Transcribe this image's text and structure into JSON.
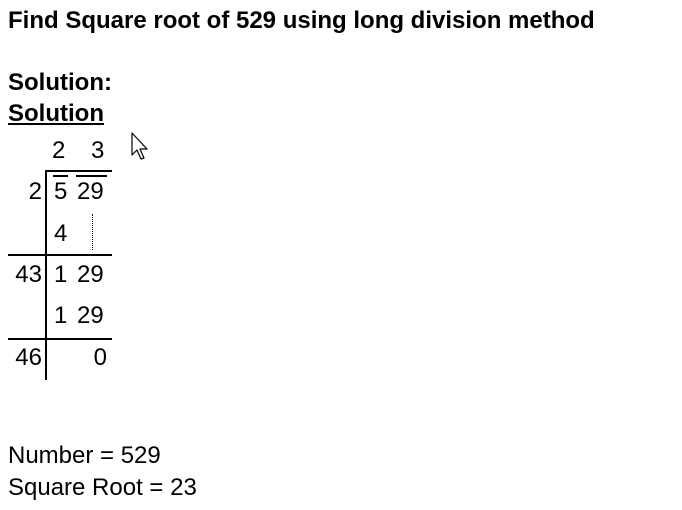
{
  "title": "Find Square root of 529 using long division method",
  "solution_heading": "Solution:",
  "solution_subheading": "Solution",
  "division": {
    "quotient_digits": [
      "2",
      "3"
    ],
    "rows": [
      {
        "divisor": "2",
        "pair1": "5",
        "pair2": "29"
      },
      {
        "divisor": "",
        "pair1": "4",
        "pair2": ""
      },
      {
        "divisor": "43",
        "pair1": "1",
        "pair2": "29"
      },
      {
        "divisor": "",
        "pair1": "1",
        "pair2": "29"
      },
      {
        "divisor": "46",
        "pair1": "",
        "pair2": "0"
      }
    ]
  },
  "result": {
    "number_line": "Number = 529",
    "root_line": "Square Root = 23"
  },
  "icons": {
    "cursor": "mouse-pointer-icon"
  }
}
